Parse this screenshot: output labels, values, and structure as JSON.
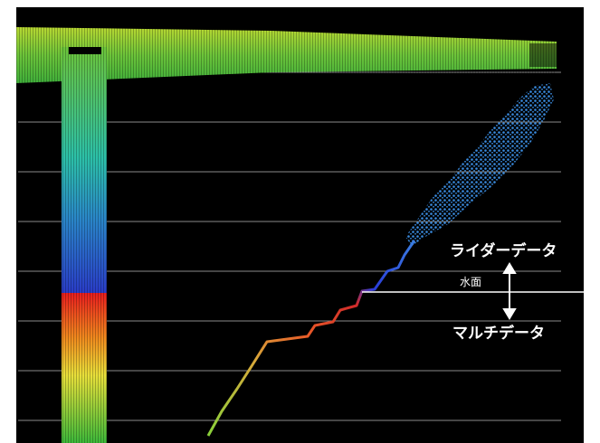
{
  "labels": {
    "lidar": "ライダーデータ",
    "water_surface": "水面",
    "multibeam": "マルチデータ"
  }
}
